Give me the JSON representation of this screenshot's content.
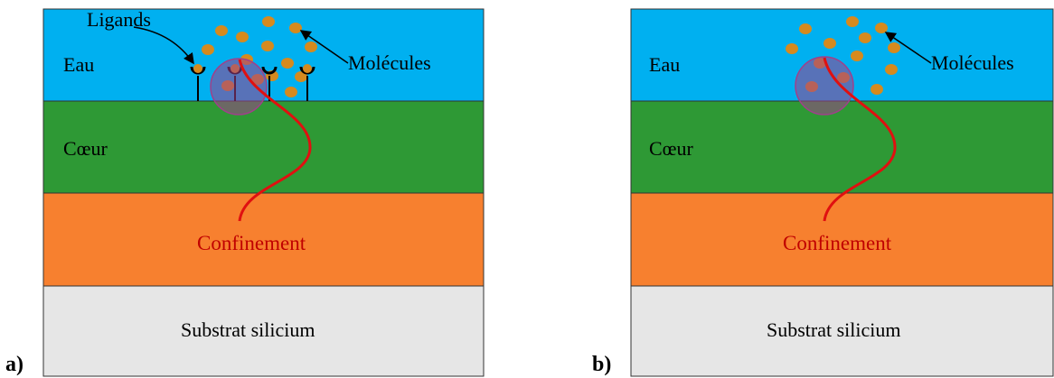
{
  "colors": {
    "water": "#00b0f0",
    "core": "#2e9935",
    "cladding": "#f7802f",
    "substrate": "#e6e6e6",
    "molecule": "#d68a1e",
    "mode_curve": "#e01010",
    "spot": "#a0408a"
  },
  "panel_a": {
    "letter": "a)",
    "water_label": "Eau",
    "core_label": "Cœur",
    "confinement_label": "Confinement",
    "substrate_label": "Substrat silicium",
    "ligands_label": "Ligands",
    "molecules_label": "Molécules"
  },
  "panel_b": {
    "letter": "b)",
    "water_label": "Eau",
    "core_label": "Cœur",
    "confinement_label": "Confinement",
    "substrate_label": "Substrat silicium",
    "molecules_label": "Molécules"
  }
}
